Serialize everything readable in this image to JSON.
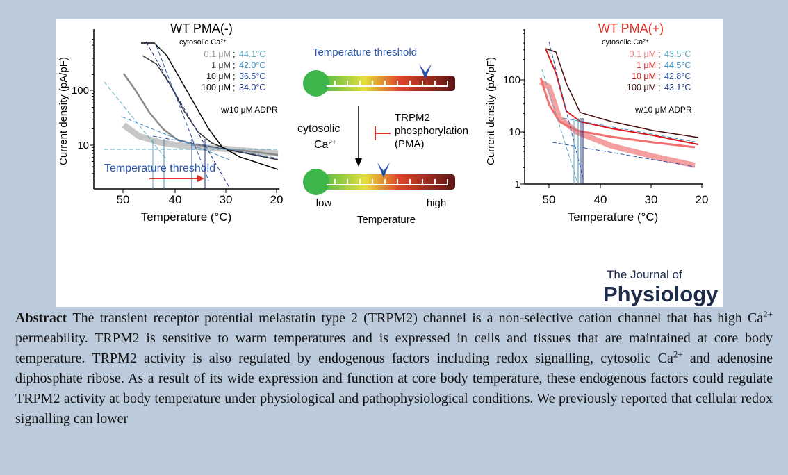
{
  "figure": {
    "left_plot": {
      "title": "WT PMA(-)",
      "ca_label": [
        "cytosolic Ca",
        "2+"
      ],
      "legend": [
        {
          "conc": "0.1 μM",
          "temp": "44.1°C"
        },
        {
          "conc": "1 μM",
          "temp": "42.0°C"
        },
        {
          "conc": "10 μM",
          "temp": "36.5°C"
        },
        {
          "conc": "100 μM",
          "temp": "34.0°C"
        }
      ],
      "separator": ";",
      "adpr": "w/10 μM ADPR",
      "y_label": "Current density (pA/pF)",
      "x_label": "Temperature (°C)",
      "yticks": [
        "100",
        "10"
      ],
      "xticks": [
        "50",
        "40",
        "30",
        "20"
      ],
      "annotation": "Temperature threshold"
    },
    "center": {
      "top_label": "Temperature threshold",
      "ca_label": [
        "cytosolic",
        "Ca",
        "2+"
      ],
      "pma_label": [
        "TRPM2",
        "phosphorylation",
        "(PMA)"
      ],
      "low": "low",
      "high": "high",
      "axis": "Temperature"
    },
    "right_plot": {
      "title": "WT PMA(+)",
      "ca_label": [
        "cytosolic Ca",
        "2+"
      ],
      "legend": [
        {
          "conc": "0.1 μM",
          "temp": "43.5°C"
        },
        {
          "conc": "1 μM",
          "temp": "44.5°C"
        },
        {
          "conc": "10 μM",
          "temp": "42.8°C"
        },
        {
          "conc": "100 μM",
          "temp": "43.1°C"
        }
      ],
      "separator": ";",
      "adpr": "w/10 μM ADPR",
      "y_label": "Current density (pA/pF)",
      "x_label": "Temperature (°C)",
      "yticks": [
        "100",
        "10",
        "1"
      ],
      "xticks": [
        "50",
        "40",
        "30",
        "20"
      ]
    },
    "logo": {
      "line1": "The Journal of",
      "line2": "Physiology"
    }
  },
  "abstract": {
    "label": "Abstract",
    "segments": [
      "The transient receptor potential melastatin type 2 (TRPM2) channel is a non-selective cation channel that has high Ca",
      "2+",
      " permeability. TRPM2 is sensitive to warm temperatures and is expressed in cells and tissues that are maintained at core body temperature. TRPM2 activity is also regulated by endogenous factors including redox signalling, cytosolic Ca",
      "2+",
      " and adenosine diphosphate ribose. As a result of its wide expression and function at core body temperature, these endogenous factors could regulate TRPM2 activity at body temperature under physiological and pathophysiological conditions. We previously reported that cellular redox signalling can lower"
    ]
  }
}
